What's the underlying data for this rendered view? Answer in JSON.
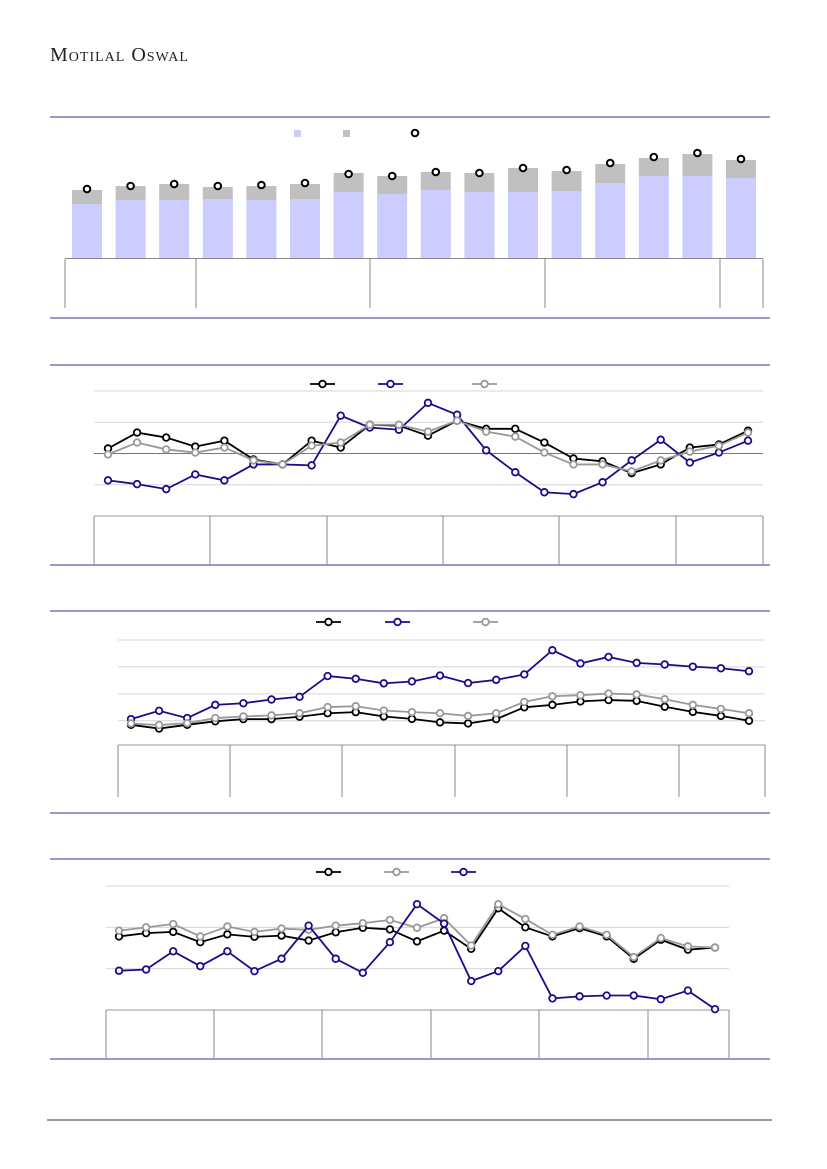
{
  "brand": {
    "name": "Motilal Oswal"
  },
  "colors": {
    "navy": "#1a0d8a",
    "black": "#000000",
    "grey": "#999999",
    "bar_light": "#ccccff",
    "bar_grey": "#c0c0c0",
    "rule": "#3a2f9a"
  },
  "chart_data": [
    {
      "type": "bar",
      "stacked": true,
      "title": "",
      "legend": [
        "",
        "",
        ""
      ],
      "ylim": [
        0,
        110
      ],
      "series": [
        {
          "name": "",
          "kind": "bar",
          "values": [
            54,
            58,
            58,
            59,
            58,
            59,
            66,
            64,
            68,
            66,
            66,
            67,
            75,
            82,
            82,
            80
          ]
        },
        {
          "name": "",
          "kind": "bar",
          "values": [
            14,
            14,
            16,
            12,
            14,
            15,
            19,
            18,
            18,
            19,
            24,
            20,
            19,
            18,
            22,
            18
          ]
        },
        {
          "name": "",
          "kind": "marker",
          "values": [
            69,
            72,
            74,
            72,
            73,
            75,
            84,
            82,
            86,
            85,
            90,
            88,
            95,
            101,
            105,
            99
          ]
        }
      ],
      "groups": 5
    },
    {
      "type": "line",
      "ylim": [
        -20,
        20
      ],
      "grid": true,
      "gridlines": [
        -10,
        0,
        10,
        20
      ],
      "series": [
        {
          "name": "",
          "color": "black",
          "values": [
            1.6,
            6.7,
            5.1,
            2.2,
            4.1,
            -1.9,
            -3.5,
            4.1,
            1.9,
            9.2,
            8.9,
            5.7,
            10.5,
            7.9,
            7.9,
            3.5,
            -1.6,
            -2.5,
            -6.3,
            -3.5,
            1.9,
            2.9,
            7.3
          ]
        },
        {
          "name": "",
          "color": "navy",
          "values": [
            -8.6,
            -9.8,
            -11.4,
            -6.7,
            -8.6,
            -3.5,
            -3.5,
            -3.8,
            12.1,
            8.3,
            7.6,
            16.2,
            12.4,
            1.0,
            -6.0,
            -12.4,
            -13.0,
            -9.2,
            -2.2,
            4.4,
            -2.9,
            0.3,
            4.1
          ]
        },
        {
          "name": "",
          "color": "grey",
          "values": [
            -0.3,
            3.5,
            1.3,
            0.3,
            1.9,
            -2.2,
            -3.5,
            2.5,
            3.5,
            9.2,
            9.2,
            7.0,
            10.5,
            7.0,
            5.4,
            0.3,
            -3.5,
            -3.5,
            -5.7,
            -2.2,
            0.6,
            2.5,
            6.7
          ]
        }
      ],
      "groups": 6
    },
    {
      "type": "line",
      "ylim": [
        -9,
        30
      ],
      "grid": true,
      "gridlines": [
        0,
        10,
        20,
        30
      ],
      "series": [
        {
          "name": "",
          "color": "black",
          "values": [
            -1.5,
            -2.9,
            -1.5,
            -0.2,
            0.6,
            0.6,
            1.5,
            2.8,
            3.2,
            1.6,
            0.7,
            -0.6,
            -1.0,
            0.6,
            5.0,
            5.9,
            7.2,
            7.7,
            7.4,
            5.2,
            3.3,
            1.8,
            0
          ]
        },
        {
          "name": "",
          "color": "navy",
          "values": [
            0.6,
            3.7,
            1.0,
            5.9,
            6.5,
            7.9,
            8.9,
            16.6,
            15.6,
            13.9,
            14.6,
            16.8,
            14.0,
            15.2,
            17.2,
            26.2,
            21.3,
            23.7,
            21.5,
            20.9,
            20.1,
            19.5,
            18.4
          ]
        },
        {
          "name": "",
          "color": "grey",
          "values": [
            -1.0,
            -1.6,
            -0.9,
            1.0,
            1.6,
            2.0,
            2.8,
            5.1,
            5.4,
            3.8,
            3.2,
            2.8,
            1.8,
            2.8,
            7.0,
            9.1,
            9.5,
            10.1,
            9.8,
            8.0,
            5.9,
            4.4,
            2.8
          ]
        }
      ],
      "groups": 6
    },
    {
      "type": "line",
      "ylim": [
        0,
        30
      ],
      "grid": true,
      "gridlines": [
        10,
        20,
        30
      ],
      "series": [
        {
          "name": "",
          "color": "black",
          "values": [
            17.8,
            18.6,
            18.9,
            16.4,
            18.3,
            17.7,
            18.0,
            16.8,
            18.8,
            19.9,
            19.5,
            16.6,
            19.2,
            14.8,
            24.6,
            20.0,
            17.8,
            19.8,
            17.8,
            12.4,
            17.0,
            14.6,
            15.1
          ]
        },
        {
          "name": "",
          "color": "grey",
          "values": [
            19.2,
            20.0,
            20.8,
            17.8,
            20.2,
            18.9,
            19.7,
            19.4,
            20.4,
            21.0,
            21.8,
            19.9,
            22.2,
            15.6,
            25.6,
            22.0,
            18.2,
            20.2,
            18.2,
            12.8,
            17.4,
            15.4,
            15.1
          ]
        },
        {
          "name": "",
          "color": "navy",
          "values": [
            9.5,
            9.8,
            14.2,
            10.6,
            14.2,
            9.4,
            12.4,
            20.4,
            12.4,
            9.0,
            16.4,
            25.6,
            20.9,
            7.0,
            9.4,
            15.5,
            2.8,
            3.3,
            3.5,
            3.5,
            2.6,
            4.7,
            0.2
          ]
        }
      ],
      "groups": 6
    }
  ]
}
